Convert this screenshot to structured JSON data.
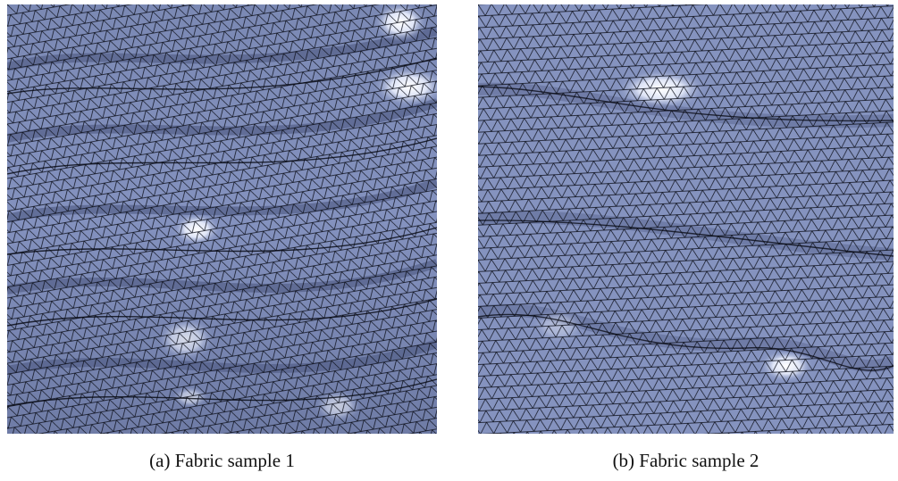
{
  "figures": [
    {
      "caption": "(a) Fabric sample 1"
    },
    {
      "caption": "(b) Fabric sample 2"
    }
  ]
}
